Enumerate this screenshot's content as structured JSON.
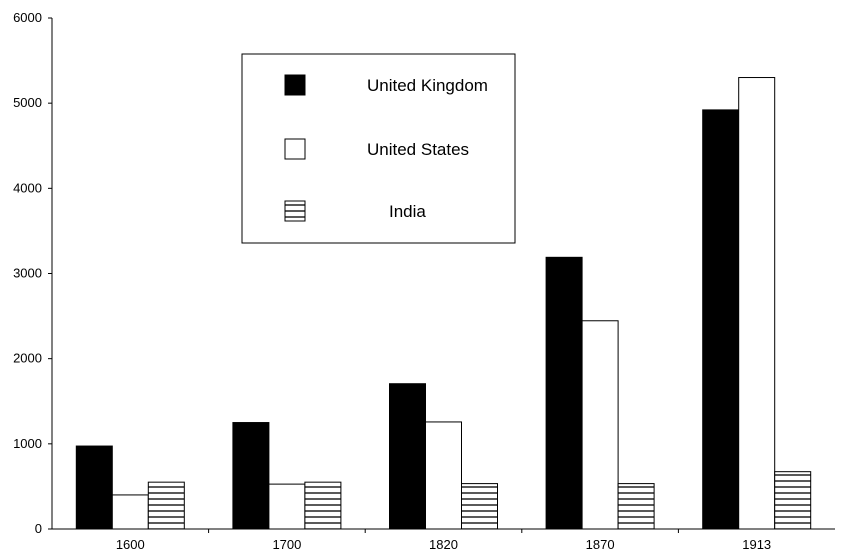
{
  "chart_data": {
    "type": "bar",
    "title": "",
    "xlabel": "",
    "ylabel": "",
    "categories": [
      "1600",
      "1700",
      "1820",
      "1870",
      "1913"
    ],
    "series": [
      {
        "name": "United Kingdom",
        "values": [
          974,
          1250,
          1706,
          3190,
          4921
        ],
        "fill": "solid",
        "color": "#000000"
      },
      {
        "name": "United States",
        "values": [
          400,
          527,
          1257,
          2445,
          5301
        ],
        "fill": "hollow",
        "color": "#ffffff"
      },
      {
        "name": "India",
        "values": [
          550,
          550,
          533,
          533,
          673
        ],
        "fill": "horizontal-stripes",
        "color": "#000000"
      }
    ],
    "ylim": [
      0,
      6000
    ],
    "yticks": [
      "0",
      "1000",
      "2000",
      "3000",
      "4000",
      "5000",
      "6000"
    ],
    "grid": false,
    "legend_position": "top-center"
  }
}
